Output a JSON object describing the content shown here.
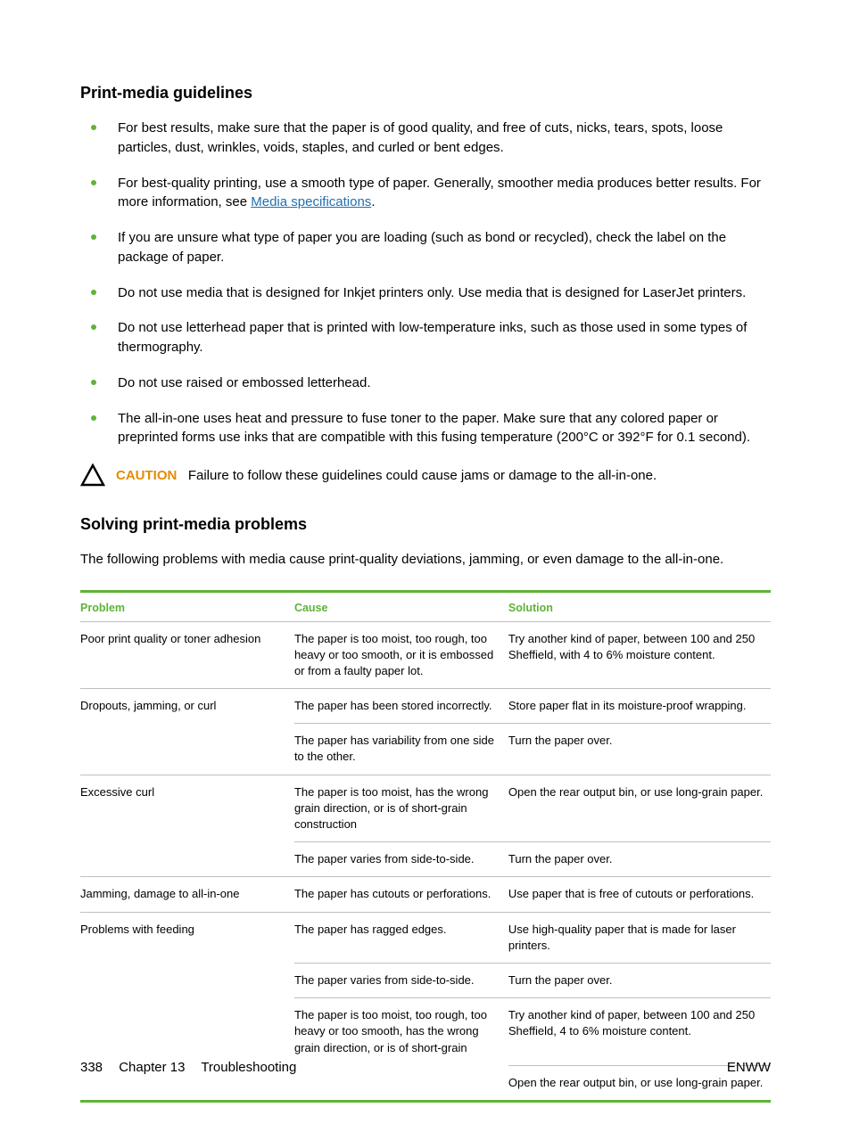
{
  "colors": {
    "accent_green": "#5fb336",
    "link_blue": "#1f6fb0",
    "caution_orange": "#e58b00",
    "rule_gray": "#bfbfbf",
    "text": "#000000",
    "background": "#ffffff"
  },
  "section1": {
    "heading": "Print-media guidelines",
    "bullets": [
      {
        "text": "For best results, make sure that the paper is of good quality, and free of cuts, nicks, tears, spots, loose particles, dust, wrinkles, voids, staples, and curled or bent edges."
      },
      {
        "text_pre": "For best-quality printing, use a smooth type of paper. Generally, smoother media produces better results. For more information, see ",
        "link_text": "Media specifications",
        "text_post": "."
      },
      {
        "text": "If you are unsure what type of paper you are loading (such as bond or recycled), check the label on the package of paper."
      },
      {
        "text": "Do not use media that is designed for Inkjet printers only. Use media that is designed for LaserJet printers."
      },
      {
        "text": "Do not use letterhead paper that is printed with low-temperature inks, such as those used in some types of thermography."
      },
      {
        "text": "Do not use raised or embossed letterhead."
      },
      {
        "text": "The all-in-one uses heat and pressure to fuse toner to the paper. Make sure that any colored paper or preprinted forms use inks that are compatible with this fusing temperature (200°C or 392°F for 0.1 second)."
      }
    ]
  },
  "caution": {
    "label": "CAUTION",
    "text": "Failure to follow these guidelines could cause jams or damage to the all-in-one."
  },
  "section2": {
    "heading": "Solving print-media problems",
    "intro": "The following problems with media cause print-quality deviations, jamming, or even damage to the all-in-one."
  },
  "table": {
    "headers": {
      "problem": "Problem",
      "cause": "Cause",
      "solution": "Solution"
    },
    "rows": [
      {
        "problem": "Poor print quality or toner adhesion",
        "cause": "The paper is too moist, too rough, too heavy or too smooth, or it is embossed or from a faulty paper lot.",
        "solution": "Try another kind of paper, between 100 and 250 Sheffield, with 4 to 6% moisture content."
      },
      {
        "problem": "Dropouts, jamming, or curl",
        "cause": "The paper has been stored incorrectly.",
        "solution": "Store paper flat in its moisture-proof wrapping."
      },
      {
        "problem": "",
        "cause": "The paper has variability from one side to the other.",
        "solution": "Turn the paper over."
      },
      {
        "problem": "Excessive curl",
        "cause": "The paper is too moist, has the wrong grain direction, or is of short-grain construction",
        "solution": "Open the rear output bin, or use long-grain paper."
      },
      {
        "problem": "",
        "cause": "The paper varies from side-to-side.",
        "solution": "Turn the paper over."
      },
      {
        "problem": "Jamming, damage to all-in-one",
        "cause": "The paper has cutouts or perforations.",
        "solution": "Use paper that is free of cutouts or perforations."
      },
      {
        "problem": "Problems with feeding",
        "cause": "The paper has ragged edges.",
        "solution": "Use high-quality paper that is made for laser printers."
      },
      {
        "problem": "",
        "cause": "The paper varies from side-to-side.",
        "solution": "Turn the paper over."
      },
      {
        "problem": "",
        "cause": "The paper is too moist, too rough, too heavy or too smooth, has the wrong grain direction, or is of short-grain",
        "solution": "Try another kind of paper, between 100 and 250 Sheffield, 4 to 6% moisture content."
      },
      {
        "problem": "",
        "cause": "",
        "solution": "Open the rear output bin, or use long-grain paper."
      }
    ]
  },
  "footer": {
    "page_number": "338",
    "chapter": "Chapter 13",
    "title": "Troubleshooting",
    "right": "ENWW"
  }
}
